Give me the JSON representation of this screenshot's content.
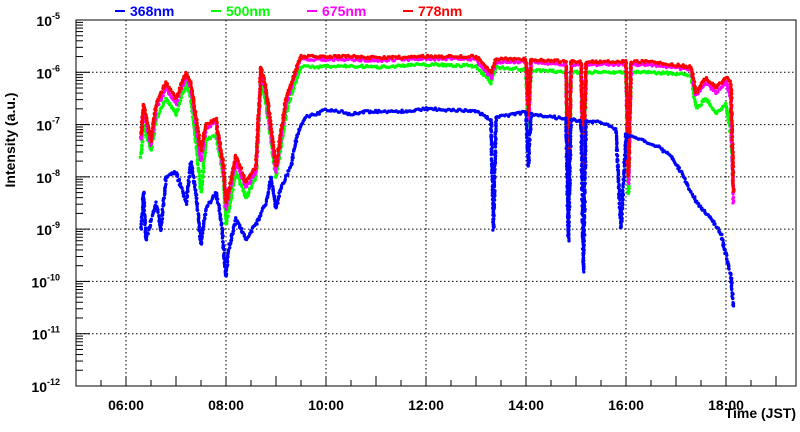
{
  "chart_data": {
    "type": "scatter",
    "title": "",
    "xlabel": "Time (JST)",
    "ylabel": "Intensity (a.u.)",
    "xscale": "linear-hours",
    "yscale": "log",
    "xlim_hours": [
      5.0,
      19.4
    ],
    "ylim_log10": [
      -12,
      -5
    ],
    "grid": true,
    "legend_position": "top",
    "x_tick_labels": [
      {
        "hour": 6,
        "label": "06:00"
      },
      {
        "hour": 8,
        "label": "08:00"
      },
      {
        "hour": 10,
        "label": "10:00"
      },
      {
        "hour": 12,
        "label": "12:00"
      },
      {
        "hour": 14,
        "label": "14:00"
      },
      {
        "hour": 16,
        "label": "16:00"
      },
      {
        "hour": 18,
        "label": "18:00"
      }
    ],
    "y_tick_labels": [
      {
        "exp": -5,
        "base": "10",
        "sup": "-5"
      },
      {
        "exp": -6,
        "base": "10",
        "sup": "-6"
      },
      {
        "exp": -7,
        "base": "10",
        "sup": "-7"
      },
      {
        "exp": -8,
        "base": "10",
        "sup": "-8"
      },
      {
        "exp": -9,
        "base": "10",
        "sup": "-9"
      },
      {
        "exp": -10,
        "base": "10",
        "sup": "-10"
      },
      {
        "exp": -11,
        "base": "10",
        "sup": "-11"
      },
      {
        "exp": -12,
        "base": "10",
        "sup": "-12"
      }
    ],
    "point_format": "[time_hours, log10_intensity]",
    "series": [
      {
        "name": "500nm",
        "color": "#00ff00",
        "points": [
          [
            6.3,
            -7.6
          ],
          [
            6.35,
            -7.0
          ],
          [
            6.5,
            -7.5
          ],
          [
            6.6,
            -6.9
          ],
          [
            6.8,
            -6.5
          ],
          [
            7.0,
            -6.8
          ],
          [
            7.2,
            -6.2
          ],
          [
            7.3,
            -6.5
          ],
          [
            7.5,
            -8.3
          ],
          [
            7.6,
            -7.3
          ],
          [
            7.8,
            -7.2
          ],
          [
            7.95,
            -8.0
          ],
          [
            8.0,
            -8.9
          ],
          [
            8.2,
            -7.9
          ],
          [
            8.4,
            -8.4
          ],
          [
            8.6,
            -8.0
          ],
          [
            8.7,
            -6.1
          ],
          [
            8.8,
            -6.6
          ],
          [
            9.0,
            -8.0
          ],
          [
            9.2,
            -6.8
          ],
          [
            9.35,
            -6.3
          ],
          [
            9.45,
            -6.0
          ],
          [
            9.5,
            -5.9
          ],
          [
            10.5,
            -5.88
          ],
          [
            11.0,
            -5.9
          ],
          [
            12.0,
            -5.85
          ],
          [
            13.0,
            -5.88
          ],
          [
            13.3,
            -6.2
          ],
          [
            13.4,
            -5.9
          ],
          [
            14.0,
            -5.95
          ],
          [
            14.05,
            -7.0
          ],
          [
            14.1,
            -5.95
          ],
          [
            14.8,
            -6.0
          ],
          [
            14.85,
            -8.6
          ],
          [
            14.9,
            -6.0
          ],
          [
            15.1,
            -6.0
          ],
          [
            15.15,
            -8.2
          ],
          [
            15.2,
            -6.0
          ],
          [
            16.0,
            -6.0
          ],
          [
            16.05,
            -8.3
          ],
          [
            16.1,
            -6.0
          ],
          [
            16.5,
            -6.0
          ],
          [
            17.3,
            -6.05
          ],
          [
            17.4,
            -6.7
          ],
          [
            17.6,
            -6.5
          ],
          [
            17.8,
            -6.8
          ],
          [
            18.0,
            -6.6
          ],
          [
            18.1,
            -7.2
          ],
          [
            18.15,
            -8.0
          ]
        ]
      },
      {
        "name": "675nm",
        "color": "#ff00ff",
        "points": [
          [
            6.3,
            -7.3
          ],
          [
            6.35,
            -6.7
          ],
          [
            6.5,
            -7.4
          ],
          [
            6.6,
            -6.7
          ],
          [
            6.8,
            -6.3
          ],
          [
            7.0,
            -6.6
          ],
          [
            7.2,
            -6.1
          ],
          [
            7.3,
            -6.3
          ],
          [
            7.5,
            -7.7
          ],
          [
            7.6,
            -7.1
          ],
          [
            7.8,
            -6.95
          ],
          [
            7.95,
            -7.9
          ],
          [
            8.0,
            -8.6
          ],
          [
            8.2,
            -7.7
          ],
          [
            8.4,
            -8.2
          ],
          [
            8.6,
            -7.9
          ],
          [
            8.7,
            -5.95
          ],
          [
            8.8,
            -6.4
          ],
          [
            9.0,
            -7.9
          ],
          [
            9.2,
            -6.6
          ],
          [
            9.35,
            -6.15
          ],
          [
            9.45,
            -5.85
          ],
          [
            9.5,
            -5.75
          ],
          [
            10.5,
            -5.75
          ],
          [
            11.0,
            -5.77
          ],
          [
            12.0,
            -5.74
          ],
          [
            13.0,
            -5.75
          ],
          [
            13.3,
            -6.1
          ],
          [
            13.4,
            -5.8
          ],
          [
            14.0,
            -5.8
          ],
          [
            14.05,
            -6.9
          ],
          [
            14.1,
            -5.8
          ],
          [
            14.8,
            -5.85
          ],
          [
            14.85,
            -8.5
          ],
          [
            14.9,
            -5.85
          ],
          [
            15.1,
            -5.85
          ],
          [
            15.15,
            -8.0
          ],
          [
            15.2,
            -5.85
          ],
          [
            16.0,
            -5.85
          ],
          [
            16.05,
            -8.1
          ],
          [
            16.1,
            -5.85
          ],
          [
            16.5,
            -5.85
          ],
          [
            17.3,
            -5.95
          ],
          [
            17.4,
            -6.45
          ],
          [
            17.6,
            -6.2
          ],
          [
            17.8,
            -6.4
          ],
          [
            18.0,
            -6.2
          ],
          [
            18.1,
            -6.5
          ],
          [
            18.15,
            -8.5
          ]
        ]
      },
      {
        "name": "778nm",
        "color": "#ff0000",
        "points": [
          [
            6.3,
            -7.2
          ],
          [
            6.35,
            -6.6
          ],
          [
            6.5,
            -7.3
          ],
          [
            6.6,
            -6.6
          ],
          [
            6.8,
            -6.2
          ],
          [
            7.0,
            -6.5
          ],
          [
            7.2,
            -6.0
          ],
          [
            7.3,
            -6.2
          ],
          [
            7.5,
            -7.5
          ],
          [
            7.6,
            -7.0
          ],
          [
            7.8,
            -6.9
          ],
          [
            7.95,
            -7.8
          ],
          [
            8.0,
            -8.5
          ],
          [
            8.2,
            -7.6
          ],
          [
            8.4,
            -8.1
          ],
          [
            8.6,
            -7.8
          ],
          [
            8.7,
            -5.9
          ],
          [
            8.8,
            -6.3
          ],
          [
            9.0,
            -7.8
          ],
          [
            9.2,
            -6.5
          ],
          [
            9.35,
            -6.1
          ],
          [
            9.45,
            -5.8
          ],
          [
            9.5,
            -5.7
          ],
          [
            10.5,
            -5.7
          ],
          [
            11.0,
            -5.72
          ],
          [
            12.0,
            -5.7
          ],
          [
            13.0,
            -5.7
          ],
          [
            13.3,
            -6.0
          ],
          [
            13.4,
            -5.75
          ],
          [
            14.0,
            -5.75
          ],
          [
            14.05,
            -6.8
          ],
          [
            14.1,
            -5.75
          ],
          [
            14.8,
            -5.8
          ],
          [
            14.85,
            -8.4
          ],
          [
            14.9,
            -5.8
          ],
          [
            15.1,
            -5.8
          ],
          [
            15.15,
            -7.9
          ],
          [
            15.2,
            -5.8
          ],
          [
            16.0,
            -5.8
          ],
          [
            16.05,
            -8.0
          ],
          [
            16.1,
            -5.8
          ],
          [
            16.5,
            -5.8
          ],
          [
            17.3,
            -5.9
          ],
          [
            17.4,
            -6.4
          ],
          [
            17.6,
            -6.1
          ],
          [
            17.8,
            -6.3
          ],
          [
            18.0,
            -6.1
          ],
          [
            18.1,
            -6.2
          ],
          [
            18.15,
            -8.3
          ]
        ]
      },
      {
        "name": "368nm",
        "color": "#0000ff",
        "points": [
          [
            6.3,
            -9.0
          ],
          [
            6.35,
            -8.3
          ],
          [
            6.4,
            -9.2
          ],
          [
            6.6,
            -8.5
          ],
          [
            6.7,
            -9.0
          ],
          [
            6.8,
            -8.0
          ],
          [
            7.0,
            -7.9
          ],
          [
            7.2,
            -8.5
          ],
          [
            7.3,
            -7.7
          ],
          [
            7.4,
            -8.3
          ],
          [
            7.5,
            -9.3
          ],
          [
            7.6,
            -8.6
          ],
          [
            7.8,
            -8.3
          ],
          [
            7.9,
            -8.8
          ],
          [
            8.0,
            -9.9
          ],
          [
            8.05,
            -9.4
          ],
          [
            8.2,
            -8.8
          ],
          [
            8.4,
            -9.2
          ],
          [
            8.6,
            -8.9
          ],
          [
            8.8,
            -8.5
          ],
          [
            8.9,
            -8.0
          ],
          [
            9.0,
            -8.6
          ],
          [
            9.1,
            -8.2
          ],
          [
            9.3,
            -7.8
          ],
          [
            9.4,
            -7.3
          ],
          [
            9.5,
            -7.0
          ],
          [
            9.6,
            -6.85
          ],
          [
            9.8,
            -6.8
          ],
          [
            10.0,
            -6.72
          ],
          [
            10.3,
            -6.75
          ],
          [
            10.5,
            -6.8
          ],
          [
            10.8,
            -6.75
          ],
          [
            11.5,
            -6.75
          ],
          [
            12.0,
            -6.7
          ],
          [
            12.5,
            -6.72
          ],
          [
            13.0,
            -6.75
          ],
          [
            13.3,
            -6.9
          ],
          [
            13.35,
            -9.0
          ],
          [
            13.4,
            -6.85
          ],
          [
            13.8,
            -6.8
          ],
          [
            14.0,
            -6.75
          ],
          [
            14.05,
            -7.8
          ],
          [
            14.1,
            -6.8
          ],
          [
            14.5,
            -6.85
          ],
          [
            14.8,
            -6.9
          ],
          [
            14.85,
            -9.2
          ],
          [
            14.9,
            -6.9
          ],
          [
            15.1,
            -6.95
          ],
          [
            15.15,
            -9.8
          ],
          [
            15.2,
            -6.95
          ],
          [
            15.5,
            -6.95
          ],
          [
            15.8,
            -7.1
          ],
          [
            15.9,
            -9.0
          ],
          [
            16.0,
            -7.2
          ],
          [
            16.3,
            -7.3
          ],
          [
            16.6,
            -7.4
          ],
          [
            16.9,
            -7.6
          ],
          [
            17.1,
            -7.9
          ],
          [
            17.3,
            -8.3
          ],
          [
            17.5,
            -8.6
          ],
          [
            17.7,
            -8.8
          ],
          [
            17.9,
            -9.1
          ],
          [
            18.0,
            -9.5
          ],
          [
            18.1,
            -9.9
          ],
          [
            18.15,
            -10.5
          ]
        ]
      }
    ],
    "legend": [
      {
        "name": "368nm",
        "color": "#0000ff"
      },
      {
        "name": "500nm",
        "color": "#00ff00"
      },
      {
        "name": "675nm",
        "color": "#ff00ff"
      },
      {
        "name": "778nm",
        "color": "#ff0000"
      }
    ]
  }
}
